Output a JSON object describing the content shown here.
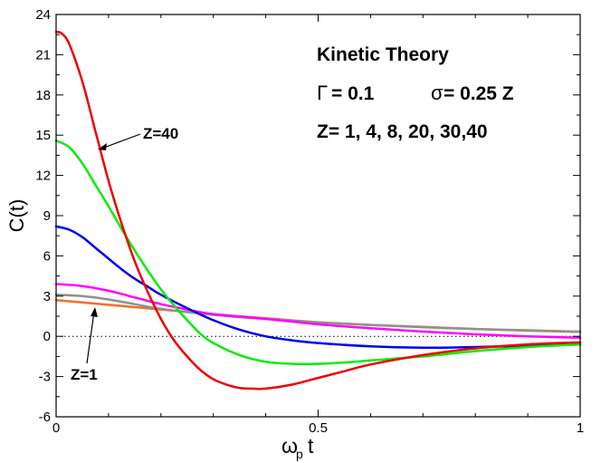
{
  "chart_data": {
    "type": "line",
    "title": "",
    "xlabel": "ω_p t",
    "ylabel": "C(t)",
    "xlim": [
      0,
      1
    ],
    "ylim": [
      -6,
      24
    ],
    "grid": false,
    "xticks": [
      {
        "value": 0,
        "label": "0"
      },
      {
        "value": 0.5,
        "label": "0.5"
      },
      {
        "value": 1,
        "label": "1"
      }
    ],
    "yticks": [
      {
        "value": 24,
        "label": "24"
      },
      {
        "value": 21,
        "label": "21"
      },
      {
        "value": 18,
        "label": "18"
      },
      {
        "value": 15,
        "label": "15"
      },
      {
        "value": 12,
        "label": "12"
      },
      {
        "value": 9,
        "label": "9"
      },
      {
        "value": 6,
        "label": "6"
      },
      {
        "value": 3,
        "label": "3"
      },
      {
        "value": 0,
        "label": "0"
      },
      {
        "value": -3,
        "label": "-3"
      },
      {
        "value": -6,
        "label": "-6"
      }
    ],
    "zero_line": {
      "y": 0,
      "style": "dotted"
    },
    "annotations": {
      "heading": "Kinetic Theory",
      "gamma_symbol": "Γ",
      "gamma_value": " = 0.1",
      "sigma_symbol": "σ",
      "sigma_value": "= 0.25 Z",
      "z_values": "Z= 1, 4, 8, 20, 30,40",
      "callout_z40": "Z=40",
      "callout_z1": "Z=1"
    },
    "series": [
      {
        "color": "#f07020",
        "width": 2.5,
        "x": [
          0,
          0.1,
          0.2,
          0.3,
          0.4,
          0.5,
          0.6,
          0.7,
          0.8,
          0.9,
          1.0
        ],
        "y": [
          2.7,
          2.35,
          2.0,
          1.65,
          1.35,
          1.05,
          0.85,
          0.7,
          0.55,
          0.45,
          0.35
        ]
      },
      {
        "color": "#909090",
        "width": 2.5,
        "x": [
          0,
          0.05,
          0.1,
          0.15,
          0.2,
          0.3,
          0.4,
          0.5,
          0.6,
          0.7,
          0.8,
          0.9,
          1.0
        ],
        "y": [
          3.1,
          3.0,
          2.75,
          2.4,
          2.05,
          1.6,
          1.3,
          1.05,
          0.85,
          0.68,
          0.55,
          0.42,
          0.33
        ]
      },
      {
        "color": "#ff00ff",
        "width": 2.5,
        "x": [
          0,
          0.05,
          0.1,
          0.15,
          0.2,
          0.25,
          0.3,
          0.4,
          0.5,
          0.6,
          0.7,
          0.8,
          0.9,
          1.0
        ],
        "y": [
          3.9,
          3.75,
          3.4,
          2.9,
          2.4,
          2.0,
          1.65,
          1.3,
          0.9,
          0.6,
          0.35,
          0.15,
          0.0,
          -0.1
        ]
      },
      {
        "color": "#0000ee",
        "width": 2.5,
        "x": [
          0,
          0.025,
          0.05,
          0.075,
          0.1,
          0.125,
          0.15,
          0.175,
          0.2,
          0.25,
          0.3,
          0.35,
          0.4,
          0.45,
          0.5,
          0.6,
          0.7,
          0.8,
          0.9,
          1.0
        ],
        "y": [
          8.2,
          7.95,
          7.4,
          6.6,
          5.8,
          5.0,
          4.3,
          3.7,
          3.1,
          2.1,
          1.2,
          0.5,
          0.0,
          -0.3,
          -0.5,
          -0.75,
          -0.85,
          -0.8,
          -0.7,
          -0.6
        ]
      },
      {
        "color": "#00ee00",
        "width": 2.5,
        "x": [
          0,
          0.025,
          0.05,
          0.075,
          0.1,
          0.125,
          0.15,
          0.175,
          0.2,
          0.225,
          0.25,
          0.275,
          0.3,
          0.35,
          0.4,
          0.45,
          0.5,
          0.55,
          0.6,
          0.7,
          0.8,
          0.9,
          1.0
        ],
        "y": [
          14.6,
          14.1,
          12.9,
          11.3,
          9.7,
          8.0,
          6.4,
          4.9,
          3.5,
          2.3,
          1.2,
          0.2,
          -0.5,
          -1.4,
          -1.9,
          -2.05,
          -2.05,
          -1.95,
          -1.8,
          -1.5,
          -1.1,
          -0.8,
          -0.6
        ]
      },
      {
        "color": "#ee0000",
        "width": 2.5,
        "x": [
          0,
          0.01,
          0.025,
          0.05,
          0.075,
          0.1,
          0.125,
          0.15,
          0.175,
          0.2,
          0.225,
          0.25,
          0.275,
          0.3,
          0.325,
          0.35,
          0.375,
          0.4,
          0.45,
          0.5,
          0.55,
          0.6,
          0.7,
          0.8,
          0.9,
          1.0
        ],
        "y": [
          22.7,
          22.6,
          21.8,
          19.0,
          15.3,
          11.6,
          8.4,
          5.6,
          3.3,
          1.3,
          -0.3,
          -1.5,
          -2.5,
          -3.2,
          -3.6,
          -3.85,
          -3.9,
          -3.9,
          -3.6,
          -3.1,
          -2.6,
          -2.1,
          -1.4,
          -0.9,
          -0.6,
          -0.45
        ]
      }
    ]
  }
}
